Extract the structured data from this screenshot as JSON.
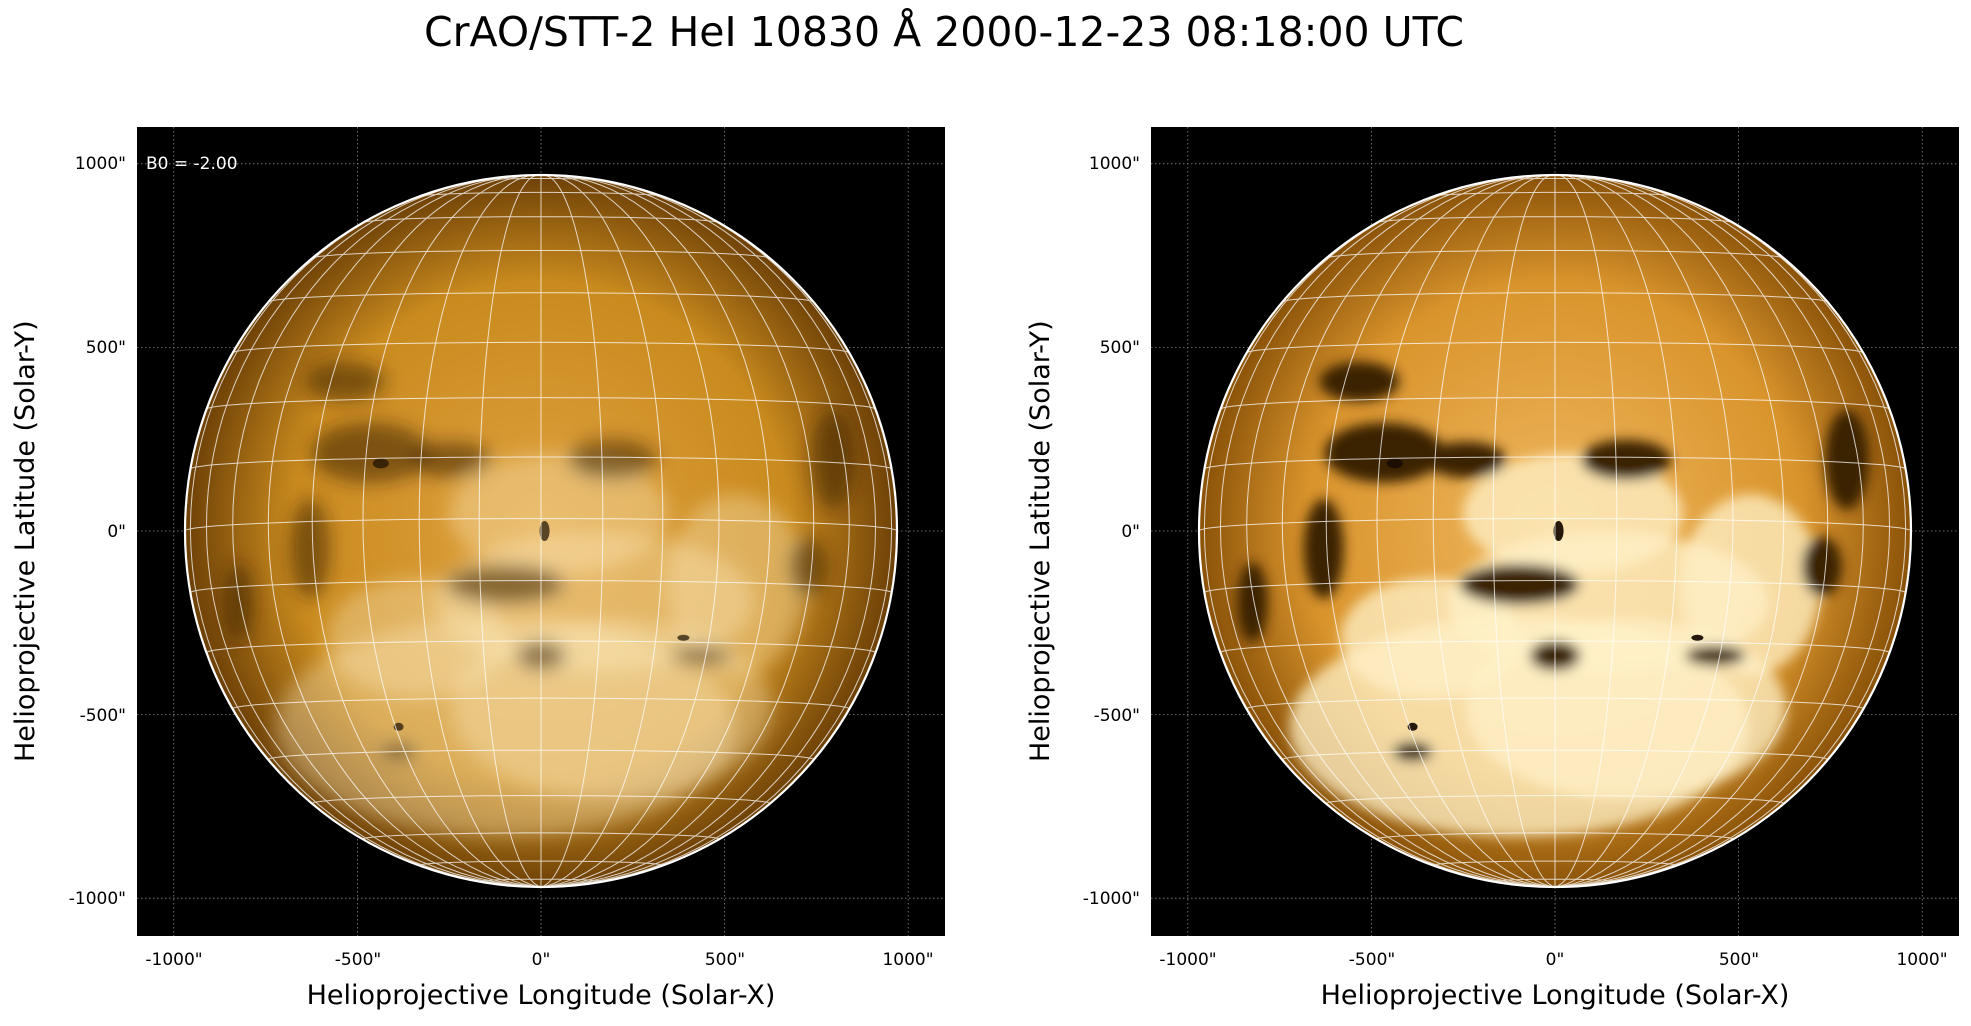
{
  "figure": {
    "title": "CrAO/STT-2 HeI 10830 Å 2000-12-23 08:18:00 UTC"
  },
  "panels": [
    {
      "annotation": "B0 = -2.00",
      "xlabel": "Helioprojective Longitude (Solar-X)",
      "ylabel": "Helioprojective Latitude (Solar-Y)",
      "xticks": [
        "-1000\"",
        "-500\"",
        "0\"",
        "500\"",
        "1000\""
      ],
      "yticks": [
        "1000\"",
        "500\"",
        "0\"",
        "-500\"",
        "-1000\""
      ],
      "contrast": "normal"
    },
    {
      "annotation": "",
      "xlabel": "Helioprojective Longitude (Solar-X)",
      "ylabel": "Helioprojective Latitude (Solar-Y)",
      "xticks": [
        "-1000\"",
        "-500\"",
        "0\"",
        "500\"",
        "1000\""
      ],
      "yticks": [
        "1000\"",
        "500\"",
        "0\"",
        "-500\"",
        "-1000\""
      ],
      "contrast": "enhanced"
    }
  ],
  "colors": {
    "disk_base": "#c98a1e",
    "disk_light": "#f2c77a",
    "disk_dark": "#3a2204",
    "background": "#000000",
    "grid": "#ffffff"
  }
}
